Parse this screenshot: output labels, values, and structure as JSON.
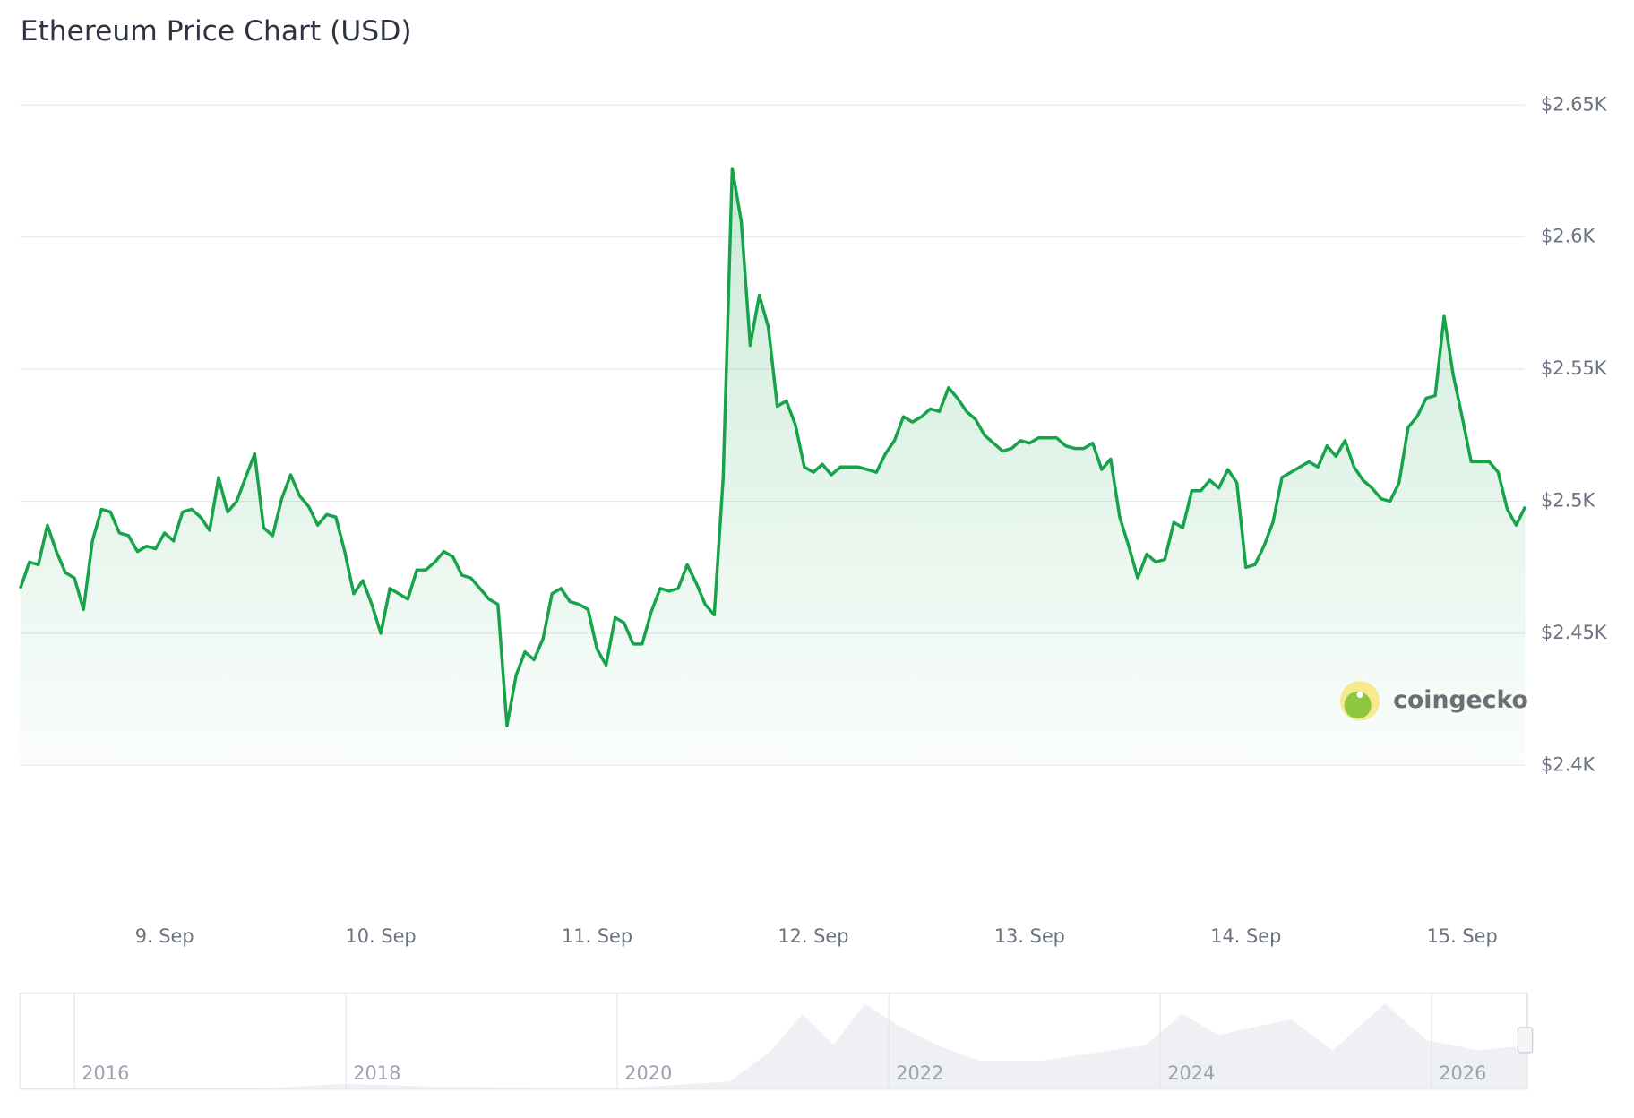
{
  "chart_data": {
    "type": "line",
    "title": "Ethereum Price Chart (USD)",
    "watermark": "coingecko",
    "color": "#16a34a",
    "grid": true,
    "xlim": [
      0,
      167
    ],
    "xticks": [
      {
        "value": 16,
        "label": "9. Sep"
      },
      {
        "value": 40,
        "label": "10. Sep"
      },
      {
        "value": 64,
        "label": "11. Sep"
      },
      {
        "value": 88,
        "label": "12. Sep"
      },
      {
        "value": 112,
        "label": "13. Sep"
      },
      {
        "value": 136,
        "label": "14. Sep"
      },
      {
        "value": 160,
        "label": "15. Sep"
      }
    ],
    "ylim": [
      2400,
      2650
    ],
    "yticks": [
      {
        "value": 2400,
        "label": "$2.4K"
      },
      {
        "value": 2450,
        "label": "$2.45K"
      },
      {
        "value": 2500,
        "label": "$2.5K"
      },
      {
        "value": 2550,
        "label": "$2.55K"
      },
      {
        "value": 2600,
        "label": "$2.6K"
      },
      {
        "value": 2650,
        "label": "$2.65K"
      }
    ],
    "values": [
      2467,
      2477,
      2476,
      2491,
      2481,
      2473,
      2471,
      2459,
      2485,
      2497,
      2496,
      2488,
      2487,
      2481,
      2483,
      2482,
      2488,
      2485,
      2496,
      2497,
      2494,
      2489,
      2509,
      2496,
      2500,
      2509,
      2518,
      2490,
      2487,
      2501,
      2510,
      2502,
      2498,
      2491,
      2495,
      2494,
      2481,
      2465,
      2470,
      2461,
      2450,
      2467,
      2465,
      2463,
      2474,
      2474,
      2477,
      2481,
      2479,
      2472,
      2471,
      2467,
      2463,
      2461,
      2415,
      2434,
      2443,
      2440,
      2448,
      2465,
      2467,
      2462,
      2461,
      2459,
      2444,
      2438,
      2456,
      2454,
      2446,
      2446,
      2458,
      2467,
      2466,
      2467,
      2476,
      2469,
      2461,
      2457,
      2509,
      2626,
      2606,
      2559,
      2578,
      2566,
      2536,
      2538,
      2529,
      2513,
      2511,
      2514,
      2510,
      2513,
      2513,
      2513,
      2512,
      2511,
      2518,
      2523,
      2532,
      2530,
      2532,
      2535,
      2534,
      2543,
      2539,
      2534,
      2531,
      2525,
      2522,
      2519,
      2520,
      2523,
      2522,
      2524,
      2524,
      2524,
      2521,
      2520,
      2520,
      2522,
      2512,
      2516,
      2494,
      2483,
      2471,
      2480,
      2477,
      2478,
      2492,
      2490,
      2504,
      2504,
      2508,
      2505,
      2512,
      2507,
      2475,
      2476,
      2483,
      2492,
      2509,
      2511,
      2513,
      2515,
      2513,
      2521,
      2517,
      2523,
      2513,
      2508,
      2505,
      2501,
      2500,
      2507,
      2528,
      2532,
      2539,
      2540,
      2570,
      2548,
      2532,
      2515,
      2515,
      2515,
      2511,
      2497,
      2491,
      2498
    ],
    "navigator_labels": [
      "2016",
      "2018",
      "2020",
      "2022",
      "2024",
      "2026"
    ]
  }
}
